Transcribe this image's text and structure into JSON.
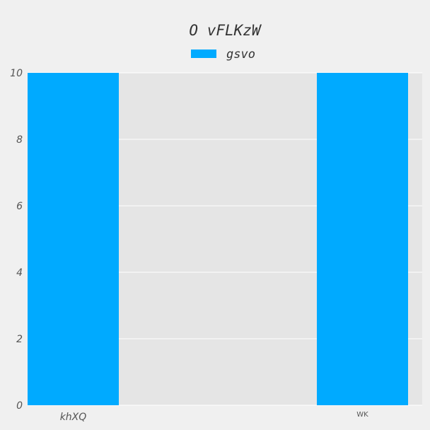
{
  "chart_data": {
    "type": "bar",
    "title": "O vFLKzW",
    "categories": [
      "khXQ",
      "WK"
    ],
    "series": [
      {
        "name": "gsvo",
        "values": [
          10,
          10
        ],
        "color": "#00aaff"
      }
    ],
    "xlabel": "",
    "ylabel": "",
    "ylim": [
      0,
      10
    ],
    "yticks": [
      "0",
      "2",
      "4",
      "6",
      "8",
      "10"
    ],
    "grid": true,
    "legend": "top-center",
    "plot_background": "#e5e5e5",
    "figure_background": "#f0f0f0"
  }
}
